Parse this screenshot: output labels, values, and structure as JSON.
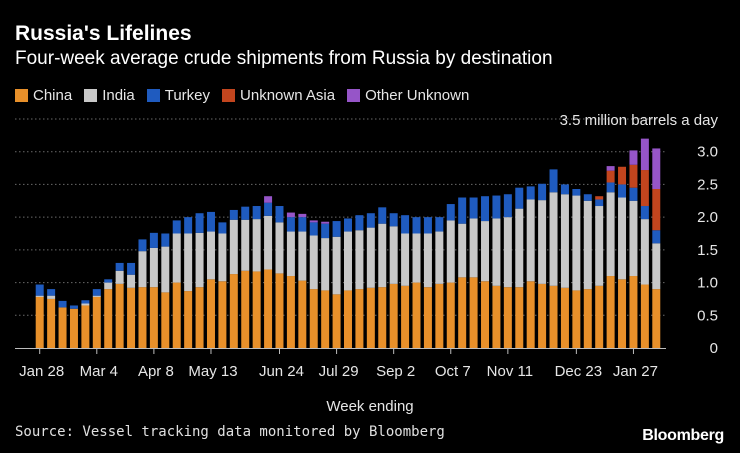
{
  "header": {
    "title": "Russia's Lifelines",
    "subtitle": "Four-week average crude shipments from Russia by destination"
  },
  "legend": [
    {
      "name": "China",
      "color": "#e8902a"
    },
    {
      "name": "India",
      "color": "#c8c8c8"
    },
    {
      "name": "Turkey",
      "color": "#1f5bbf"
    },
    {
      "name": "Unknown Asia",
      "color": "#c2451e"
    },
    {
      "name": "Other Unknown",
      "color": "#9655c8"
    }
  ],
  "footer": {
    "source": "Source: Vessel tracking data monitored by Bloomberg",
    "brand": "Bloomberg"
  },
  "chart_data": {
    "type": "bar",
    "stacked": true,
    "xlabel": "Week ending",
    "ylabel": "",
    "y_top_label": "3.5 million barrels a day",
    "ylim": [
      0,
      3.5
    ],
    "yticks": [
      "0",
      "0.5",
      "1.0",
      "1.5",
      "2.0",
      "2.5",
      "3.0"
    ],
    "grid": true,
    "axis_position": "right",
    "x_tick_labels": [
      {
        "index": 0,
        "label": "Jan 28"
      },
      {
        "index": 5,
        "label": "Mar 4"
      },
      {
        "index": 10,
        "label": "Apr 8"
      },
      {
        "index": 15,
        "label": "May 13"
      },
      {
        "index": 21,
        "label": "Jun 24"
      },
      {
        "index": 26,
        "label": "Jul 29"
      },
      {
        "index": 31,
        "label": "Sep 2"
      },
      {
        "index": 36,
        "label": "Oct 7"
      },
      {
        "index": 41,
        "label": "Nov 11"
      },
      {
        "index": 47,
        "label": "Dec 23"
      },
      {
        "index": 52,
        "label": "Jan 27"
      }
    ],
    "series": [
      {
        "name": "China",
        "color": "#e8902a",
        "values": [
          0.78,
          0.75,
          0.62,
          0.6,
          0.65,
          0.78,
          0.9,
          0.98,
          0.92,
          0.93,
          0.93,
          0.85,
          1.0,
          0.87,
          0.93,
          1.05,
          1.02,
          1.13,
          1.18,
          1.17,
          1.2,
          1.14,
          1.1,
          1.03,
          0.9,
          0.88,
          0.82,
          0.88,
          0.9,
          0.92,
          0.93,
          0.98,
          0.95,
          1.0,
          0.93,
          0.98,
          1.0,
          1.08,
          1.08,
          1.02,
          0.95,
          0.93,
          0.93,
          1.02,
          0.98,
          0.95,
          0.92,
          0.88,
          0.9,
          0.95,
          1.1,
          1.05,
          1.1,
          0.97,
          0.9
        ]
      },
      {
        "name": "India",
        "color": "#c8c8c8",
        "values": [
          0.02,
          0.05,
          0.0,
          0.0,
          0.03,
          0.02,
          0.1,
          0.2,
          0.2,
          0.55,
          0.6,
          0.7,
          0.75,
          0.88,
          0.83,
          0.73,
          0.73,
          0.83,
          0.78,
          0.8,
          0.82,
          0.78,
          0.68,
          0.75,
          0.82,
          0.8,
          0.88,
          0.9,
          0.9,
          0.92,
          0.97,
          0.88,
          0.8,
          0.75,
          0.82,
          0.8,
          0.95,
          0.82,
          0.9,
          0.92,
          1.03,
          1.07,
          1.2,
          1.25,
          1.28,
          1.43,
          1.43,
          1.45,
          1.35,
          1.22,
          1.28,
          1.25,
          1.15,
          1.0,
          0.7
        ]
      },
      {
        "name": "Turkey",
        "color": "#1f5bbf",
        "values": [
          0.17,
          0.1,
          0.1,
          0.05,
          0.05,
          0.1,
          0.05,
          0.12,
          0.18,
          0.18,
          0.23,
          0.2,
          0.2,
          0.25,
          0.3,
          0.3,
          0.17,
          0.15,
          0.2,
          0.2,
          0.2,
          0.25,
          0.22,
          0.22,
          0.2,
          0.22,
          0.24,
          0.2,
          0.23,
          0.22,
          0.25,
          0.2,
          0.28,
          0.25,
          0.25,
          0.22,
          0.25,
          0.4,
          0.32,
          0.38,
          0.35,
          0.35,
          0.32,
          0.2,
          0.25,
          0.35,
          0.15,
          0.1,
          0.1,
          0.1,
          0.15,
          0.2,
          0.2,
          0.2,
          0.2
        ]
      },
      {
        "name": "Unknown Asia",
        "color": "#c2451e",
        "values": [
          0,
          0,
          0,
          0,
          0,
          0,
          0,
          0,
          0,
          0,
          0,
          0,
          0,
          0,
          0,
          0,
          0,
          0,
          0,
          0,
          0,
          0,
          0,
          0,
          0,
          0,
          0,
          0,
          0,
          0,
          0,
          0,
          0,
          0,
          0,
          0,
          0,
          0,
          0,
          0,
          0,
          0,
          0,
          0,
          0,
          0,
          0,
          0,
          0,
          0.05,
          0.18,
          0.27,
          0.35,
          0.55,
          0.63
        ]
      },
      {
        "name": "Other Unknown",
        "color": "#9655c8",
        "values": [
          0,
          0,
          0,
          0,
          0,
          0,
          0,
          0,
          0,
          0,
          0,
          0,
          0,
          0,
          0,
          0,
          0,
          0,
          0,
          0,
          0.1,
          0.0,
          0.07,
          0.05,
          0.03,
          0.03,
          0,
          0,
          0,
          0,
          0,
          0,
          0,
          0,
          0,
          0,
          0,
          0,
          0,
          0,
          0,
          0,
          0,
          0,
          0,
          0,
          0,
          0,
          0,
          0,
          0.07,
          0.0,
          0.22,
          0.48,
          0.62
        ]
      }
    ]
  }
}
